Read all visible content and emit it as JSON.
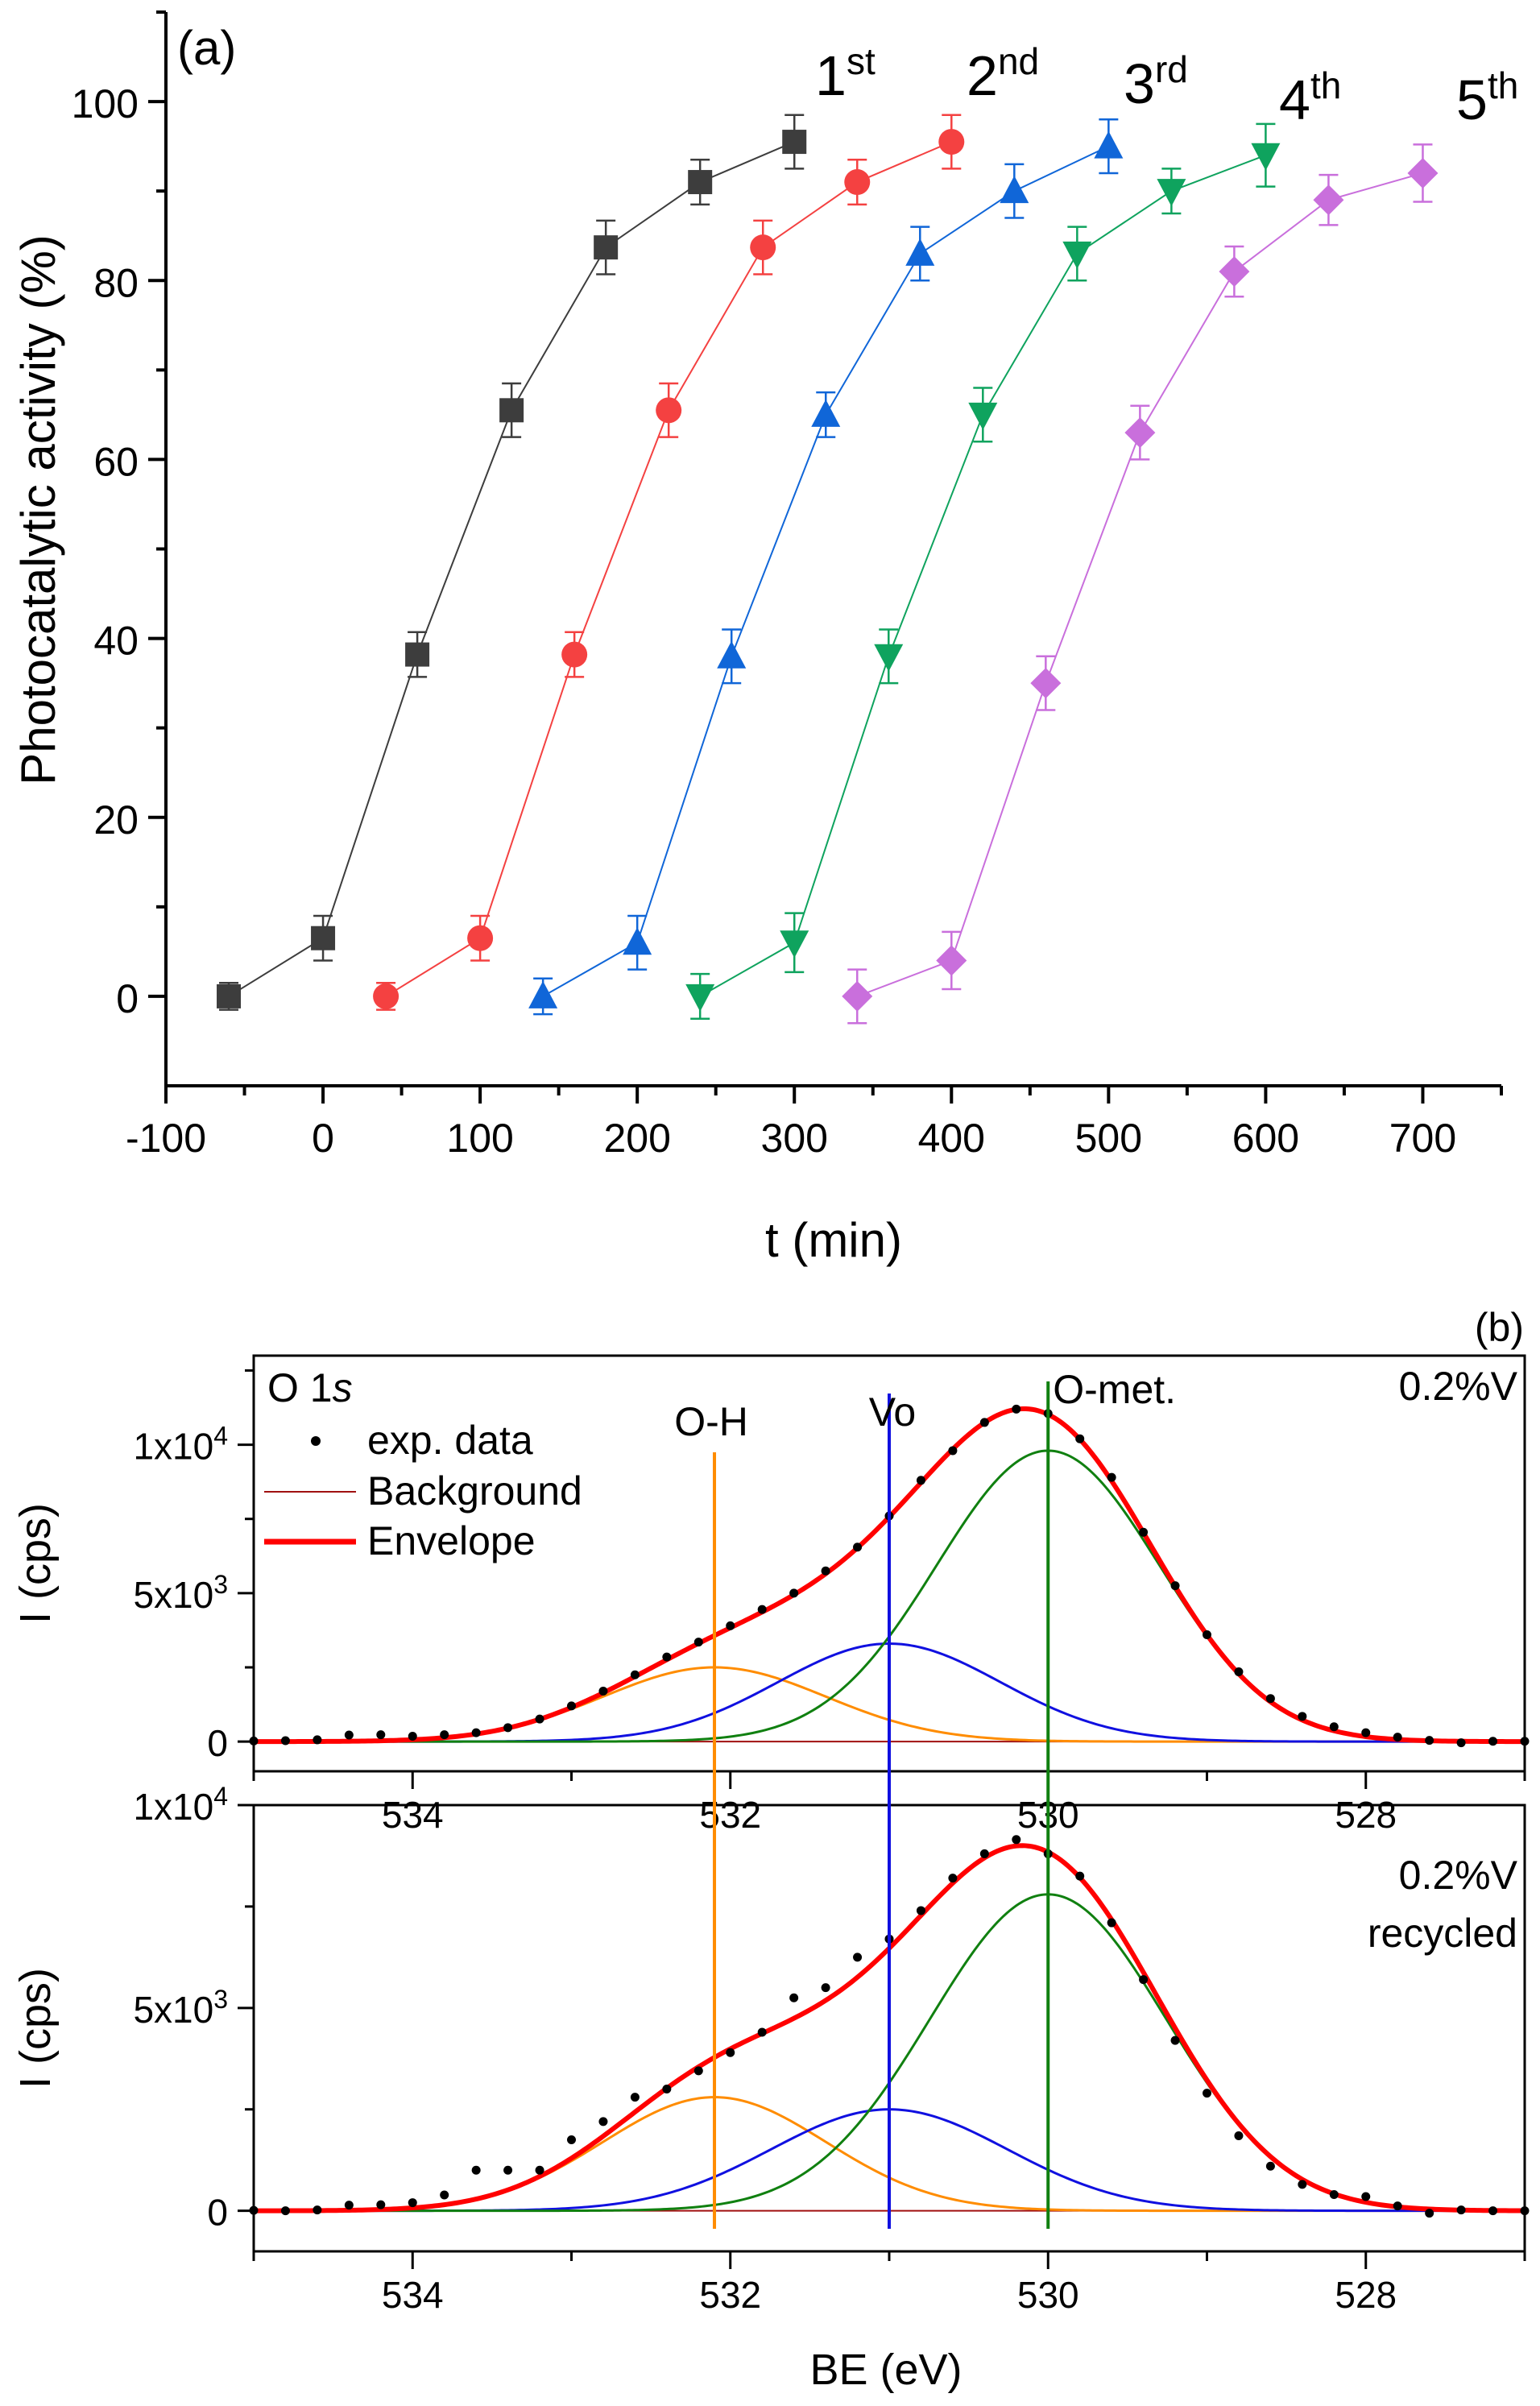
{
  "chart_data": [
    {
      "type": "line",
      "panel_label": "(a)",
      "xlabel": "t (min)",
      "ylabel": "Photocatalytic activity (%)",
      "xlim": [
        -100,
        750
      ],
      "ylim": [
        -10,
        110
      ],
      "xticks": [
        -100,
        0,
        100,
        200,
        300,
        400,
        500,
        600,
        700
      ],
      "yticks": [
        0,
        20,
        40,
        60,
        80,
        100
      ],
      "grid": false,
      "series": [
        {
          "name": "1st",
          "label_base": "1",
          "label_sup": "st",
          "color": "#3d3d3d",
          "marker": "square",
          "x": [
            -60,
            0,
            60,
            120,
            180,
            240,
            300
          ],
          "y": [
            0,
            6.5,
            38.2,
            65.5,
            83.7,
            91,
            95.5
          ],
          "err": [
            1.5,
            2.5,
            2.5,
            3,
            3,
            2.5,
            3
          ]
        },
        {
          "name": "2nd",
          "label_base": "2",
          "label_sup": "nd",
          "color": "#f44141",
          "marker": "circle",
          "x": [
            40,
            100,
            160,
            220,
            280,
            340,
            400
          ],
          "y": [
            0,
            6.5,
            38.2,
            65.5,
            83.7,
            91,
            95.5
          ],
          "err": [
            1.5,
            2.5,
            2.5,
            3,
            3,
            2.5,
            3
          ]
        },
        {
          "name": "3rd",
          "label_base": "3",
          "label_sup": "rd",
          "color": "#1066d8",
          "marker": "triangle-up",
          "x": [
            140,
            200,
            260,
            320,
            380,
            440,
            500
          ],
          "y": [
            0,
            6,
            38,
            65,
            83,
            90,
            95
          ],
          "err": [
            2,
            3,
            3,
            2.5,
            3,
            3,
            3
          ]
        },
        {
          "name": "4th",
          "label_base": "4",
          "label_sup": "th",
          "color": "#0fa35e",
          "marker": "triangle-down",
          "x": [
            240,
            300,
            360,
            420,
            480,
            540,
            600
          ],
          "y": [
            0,
            6,
            38,
            65,
            83,
            90,
            94
          ],
          "err": [
            2.5,
            3.3,
            3,
            3,
            3,
            2.5,
            3.5
          ]
        },
        {
          "name": "5th",
          "label_base": "5",
          "label_sup": "th",
          "color": "#c96fdc",
          "marker": "diamond",
          "x": [
            340,
            400,
            460,
            520,
            580,
            640,
            700
          ],
          "y": [
            0,
            4,
            35,
            63,
            81,
            89,
            92
          ],
          "err": [
            3,
            3.2,
            3,
            3,
            2.8,
            2.8,
            3.2
          ]
        }
      ]
    },
    {
      "type": "line",
      "panel_label": "(b)",
      "title_main": "O 1",
      "title_italic": "s",
      "xlabel": "BE (eV)",
      "ylabel": "I (cps)",
      "xlim": [
        535,
        527
      ],
      "xticks": [
        534,
        532,
        530,
        528
      ],
      "legend": {
        "position": "top-left",
        "entries": [
          "exp. data",
          "Background",
          "Envelope"
        ]
      },
      "colors": {
        "exp_data": "#000000",
        "background": "#a01010",
        "envelope": "#ff0000"
      },
      "peak_labels": {
        "O-H": "O-H",
        "Vo": "Vo",
        "O-met": "O-met."
      },
      "panels": [
        {
          "sample": [
            "0.2%V"
          ],
          "ylim": [
            -1000,
            13000
          ],
          "yticks": [
            {
              "value": 0,
              "base": "0",
              "sup": ""
            },
            {
              "value": 5000,
              "base": "5x10",
              "sup": "3"
            },
            {
              "value": 10000,
              "base": "1x10",
              "sup": "4"
            }
          ],
          "components": [
            {
              "name": "O-H",
              "center": 532.1,
              "amplitude": 2500,
              "fwhm": 1.65,
              "color": "#ff8c00"
            },
            {
              "name": "Vo",
              "center": 531.0,
              "amplitude": 3300,
              "fwhm": 1.65,
              "color": "#1010e0"
            },
            {
              "name": "O-met.",
              "center": 530.0,
              "amplitude": 9800,
              "fwhm": 1.65,
              "color": "#108010"
            }
          ],
          "exp_data": [
            [
              535.0,
              20
            ],
            [
              534.8,
              30
            ],
            [
              534.6,
              60
            ],
            [
              534.4,
              220
            ],
            [
              534.2,
              230
            ],
            [
              534.0,
              180
            ],
            [
              533.8,
              230
            ],
            [
              533.6,
              300
            ],
            [
              533.4,
              470
            ],
            [
              533.2,
              760
            ],
            [
              533.0,
              1200
            ],
            [
              532.8,
              1700
            ],
            [
              532.6,
              2250
            ],
            [
              532.4,
              2850
            ],
            [
              532.2,
              3350
            ],
            [
              532.0,
              3900
            ],
            [
              531.8,
              4450
            ],
            [
              531.6,
              5000
            ],
            [
              531.4,
              5750
            ],
            [
              531.2,
              6550
            ],
            [
              531.0,
              7600
            ],
            [
              530.8,
              8800
            ],
            [
              530.6,
              9800
            ],
            [
              530.4,
              10750
            ],
            [
              530.2,
              11200
            ],
            [
              530.0,
              11050
            ],
            [
              529.8,
              10200
            ],
            [
              529.6,
              8900
            ],
            [
              529.4,
              7050
            ],
            [
              529.2,
              5250
            ],
            [
              529.0,
              3600
            ],
            [
              528.8,
              2350
            ],
            [
              528.6,
              1450
            ],
            [
              528.4,
              850
            ],
            [
              528.2,
              500
            ],
            [
              528.0,
              300
            ],
            [
              527.8,
              150
            ],
            [
              527.6,
              40
            ],
            [
              527.4,
              -40
            ],
            [
              527.2,
              10
            ],
            [
              527.0,
              10
            ]
          ]
        },
        {
          "sample": [
            "0.2%V",
            "recycled"
          ],
          "ylim": [
            -1000,
            10000
          ],
          "yticks": [
            {
              "value": 0,
              "base": "0",
              "sup": ""
            },
            {
              "value": 5000,
              "base": "5x10",
              "sup": "3"
            },
            {
              "value": 10000,
              "base": "1x10",
              "sup": "4"
            }
          ],
          "components": [
            {
              "name": "O-H",
              "center": 532.1,
              "amplitude": 2800,
              "fwhm": 1.65,
              "color": "#ff8c00"
            },
            {
              "name": "Vo",
              "center": 531.0,
              "amplitude": 2500,
              "fwhm": 1.75,
              "color": "#1010e0"
            },
            {
              "name": "O-met.",
              "center": 530.0,
              "amplitude": 7800,
              "fwhm": 1.75,
              "color": "#108010"
            }
          ],
          "exp_data": [
            [
              535.0,
              10
            ],
            [
              534.8,
              0
            ],
            [
              534.6,
              20
            ],
            [
              534.4,
              140
            ],
            [
              534.2,
              150
            ],
            [
              534.0,
              200
            ],
            [
              533.8,
              390
            ],
            [
              533.6,
              1000
            ],
            [
              533.4,
              1000
            ],
            [
              533.2,
              1000
            ],
            [
              533.0,
              1750
            ],
            [
              532.8,
              2200
            ],
            [
              532.6,
              2800
            ],
            [
              532.4,
              3000
            ],
            [
              532.2,
              3450
            ],
            [
              532.0,
              3900
            ],
            [
              531.8,
              4400
            ],
            [
              531.6,
              5250
            ],
            [
              531.4,
              5500
            ],
            [
              531.2,
              6250
            ],
            [
              531.0,
              6700
            ],
            [
              530.8,
              7400
            ],
            [
              530.6,
              8200
            ],
            [
              530.4,
              8800
            ],
            [
              530.2,
              9150
            ],
            [
              530.0,
              8800
            ],
            [
              529.8,
              8250
            ],
            [
              529.6,
              7100
            ],
            [
              529.4,
              5700
            ],
            [
              529.2,
              4200
            ],
            [
              529.0,
              2900
            ],
            [
              528.8,
              1850
            ],
            [
              528.6,
              1100
            ],
            [
              528.4,
              650
            ],
            [
              528.2,
              400
            ],
            [
              528.0,
              350
            ],
            [
              527.8,
              120
            ],
            [
              527.6,
              -60
            ],
            [
              527.4,
              20
            ],
            [
              527.2,
              0
            ],
            [
              527.0,
              0
            ]
          ]
        }
      ]
    }
  ]
}
